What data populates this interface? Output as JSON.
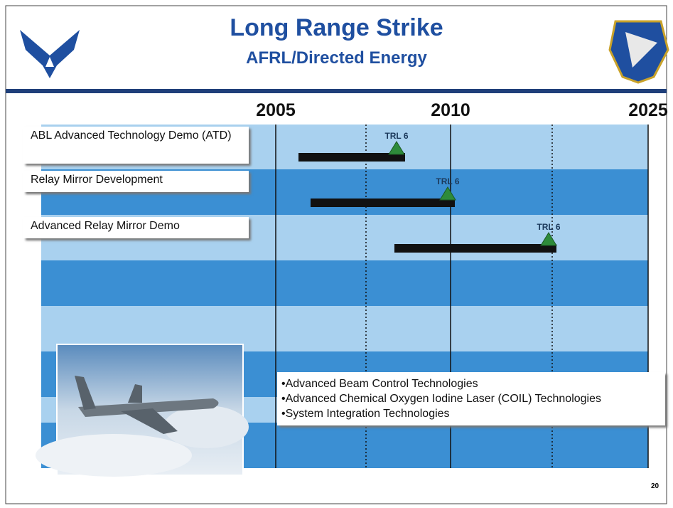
{
  "header": {
    "title": "Long Range Strike",
    "subtitle": "AFRL/Directed Energy"
  },
  "timeline": {
    "years": [
      "2005",
      "2010",
      "2025"
    ]
  },
  "programs": [
    {
      "label": "ABL Advanced Technology Demo (ATD)",
      "milestone": "TRL 6"
    },
    {
      "label": "Relay Mirror Development",
      "milestone": "TRL 6"
    },
    {
      "label": "Advanced Relay Mirror Demo",
      "milestone": "TRL 6"
    }
  ],
  "bullets": [
    "•Advanced Beam Control Technologies",
    "•Advanced Chemical Oxygen Iodine Laser (COIL)  Technologies",
    "•System Integration Technologies"
  ],
  "page_number": "20"
}
